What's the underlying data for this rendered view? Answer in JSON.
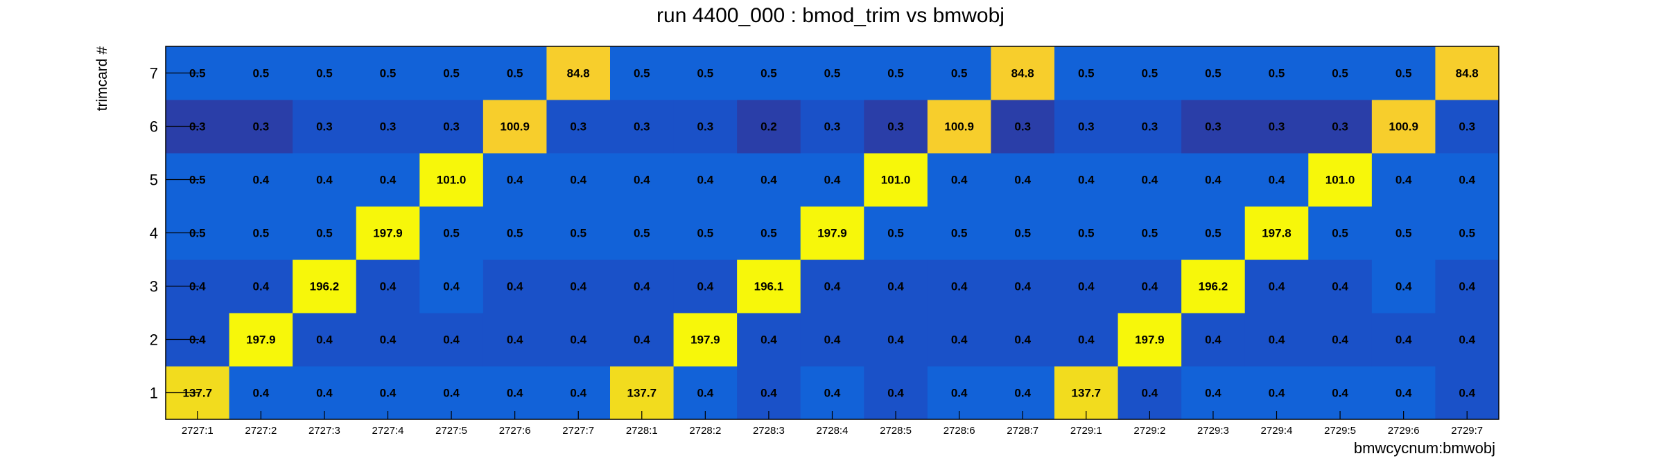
{
  "chart_data": {
    "type": "heatmap",
    "title": "run 4400_000 : bmod_trim vs bmwobj",
    "xlabel": "bmwcycnum:bmwobj",
    "ylabel": "trimcard #",
    "x_categories": [
      "2727:1",
      "2727:2",
      "2727:3",
      "2727:4",
      "2727:5",
      "2727:6",
      "2727:7",
      "2728:1",
      "2728:2",
      "2728:3",
      "2728:4",
      "2728:5",
      "2728:6",
      "2728:7",
      "2729:1",
      "2729:2",
      "2729:3",
      "2729:4",
      "2729:5",
      "2729:6",
      "2729:7"
    ],
    "y_categories": [
      "1",
      "2",
      "3",
      "4",
      "5",
      "6",
      "7"
    ],
    "values": [
      [
        "137.7",
        "0.4",
        "0.4",
        "0.4",
        "0.4",
        "0.4",
        "0.4",
        "137.7",
        "0.4",
        "0.4",
        "0.4",
        "0.4",
        "0.4",
        "0.4",
        "137.7",
        "0.4",
        "0.4",
        "0.4",
        "0.4",
        "0.4",
        "0.4"
      ],
      [
        "0.4",
        "197.9",
        "0.4",
        "0.4",
        "0.4",
        "0.4",
        "0.4",
        "0.4",
        "197.9",
        "0.4",
        "0.4",
        "0.4",
        "0.4",
        "0.4",
        "0.4",
        "197.9",
        "0.4",
        "0.4",
        "0.4",
        "0.4",
        "0.4"
      ],
      [
        "0.4",
        "0.4",
        "196.2",
        "0.4",
        "0.4",
        "0.4",
        "0.4",
        "0.4",
        "0.4",
        "196.1",
        "0.4",
        "0.4",
        "0.4",
        "0.4",
        "0.4",
        "0.4",
        "196.2",
        "0.4",
        "0.4",
        "0.4",
        "0.4"
      ],
      [
        "0.5",
        "0.5",
        "0.5",
        "197.9",
        "0.5",
        "0.5",
        "0.5",
        "0.5",
        "0.5",
        "0.5",
        "197.9",
        "0.5",
        "0.5",
        "0.5",
        "0.5",
        "0.5",
        "0.5",
        "197.8",
        "0.5",
        "0.5",
        "0.5"
      ],
      [
        "0.5",
        "0.4",
        "0.4",
        "0.4",
        "101.0",
        "0.4",
        "0.4",
        "0.4",
        "0.4",
        "0.4",
        "0.4",
        "101.0",
        "0.4",
        "0.4",
        "0.4",
        "0.4",
        "0.4",
        "0.4",
        "101.0",
        "0.4",
        "0.4"
      ],
      [
        "0.3",
        "0.3",
        "0.3",
        "0.3",
        "0.3",
        "100.9",
        "0.3",
        "0.3",
        "0.3",
        "0.2",
        "0.3",
        "0.3",
        "100.9",
        "0.3",
        "0.3",
        "0.3",
        "0.3",
        "0.3",
        "0.3",
        "100.9",
        "0.3"
      ],
      [
        "0.5",
        "0.5",
        "0.5",
        "0.5",
        "0.5",
        "0.5",
        "84.8",
        "0.5",
        "0.5",
        "0.5",
        "0.5",
        "0.5",
        "0.5",
        "84.8",
        "0.5",
        "0.5",
        "0.5",
        "0.5",
        "0.5",
        "0.5",
        "84.8"
      ]
    ],
    "cell_colors": [
      [
        "#f2dc1e",
        "#1262d8",
        "#1262d8",
        "#1262d8",
        "#1262d8",
        "#1262d8",
        "#1262d8",
        "#f2dc1e",
        "#1262d8",
        "#1a51c8",
        "#1262d8",
        "#1a51c8",
        "#1262d8",
        "#1262d8",
        "#f2dc1e",
        "#1a51c8",
        "#1262d8",
        "#1262d8",
        "#1262d8",
        "#1262d8",
        "#1a51c8"
      ],
      [
        "#1a51c8",
        "#f7f70a",
        "#1a51c8",
        "#1a51c8",
        "#1a51c8",
        "#1a51c8",
        "#1a51c8",
        "#1a51c8",
        "#f7f70a",
        "#1a51c8",
        "#1a51c8",
        "#1a51c8",
        "#1a51c8",
        "#1a51c8",
        "#1a51c8",
        "#f7f70a",
        "#1a51c8",
        "#1a51c8",
        "#1a51c8",
        "#1a51c8",
        "#1a51c8"
      ],
      [
        "#1a51c8",
        "#1a51c8",
        "#f7f70a",
        "#1a51c8",
        "#1262d8",
        "#1a51c8",
        "#1a51c8",
        "#1a51c8",
        "#1a51c8",
        "#f7f70a",
        "#1a51c8",
        "#1a51c8",
        "#1a51c8",
        "#1a51c8",
        "#1a51c8",
        "#1a51c8",
        "#f7f70a",
        "#1a51c8",
        "#1a51c8",
        "#1262d8",
        "#1a51c8"
      ],
      [
        "#1262d8",
        "#1262d8",
        "#1262d8",
        "#f7f70a",
        "#1262d8",
        "#1262d8",
        "#1262d8",
        "#1262d8",
        "#1262d8",
        "#1262d8",
        "#f7f70a",
        "#1262d8",
        "#1262d8",
        "#1262d8",
        "#1262d8",
        "#1262d8",
        "#1262d8",
        "#f7f70a",
        "#1262d8",
        "#1262d8",
        "#1262d8"
      ],
      [
        "#1262d8",
        "#1262d8",
        "#1262d8",
        "#1262d8",
        "#f7f70a",
        "#1262d8",
        "#1262d8",
        "#1262d8",
        "#1262d8",
        "#1262d8",
        "#1262d8",
        "#f7f70a",
        "#1262d8",
        "#1262d8",
        "#1262d8",
        "#1262d8",
        "#1262d8",
        "#1262d8",
        "#f7f70a",
        "#1262d8",
        "#1262d8"
      ],
      [
        "#2a3ea8",
        "#2a3ea8",
        "#1a51c8",
        "#1a51c8",
        "#1a51c8",
        "#f7ce2c",
        "#1a51c8",
        "#1a51c8",
        "#1a51c8",
        "#2a3ea8",
        "#1a51c8",
        "#2a3ea8",
        "#f7ce2c",
        "#2a3ea8",
        "#1a51c8",
        "#1a51c8",
        "#2a3ea8",
        "#2a3ea8",
        "#2a3ea8",
        "#f7ce2c",
        "#1a51c8"
      ],
      [
        "#1262d8",
        "#1262d8",
        "#1262d8",
        "#1262d8",
        "#1262d8",
        "#1262d8",
        "#f7ce2c",
        "#1262d8",
        "#1262d8",
        "#1262d8",
        "#1262d8",
        "#1262d8",
        "#1262d8",
        "#f7ce2c",
        "#1262d8",
        "#1262d8",
        "#1262d8",
        "#1262d8",
        "#1262d8",
        "#1262d8",
        "#f7ce2c"
      ]
    ],
    "legend": "none",
    "grid": false
  }
}
